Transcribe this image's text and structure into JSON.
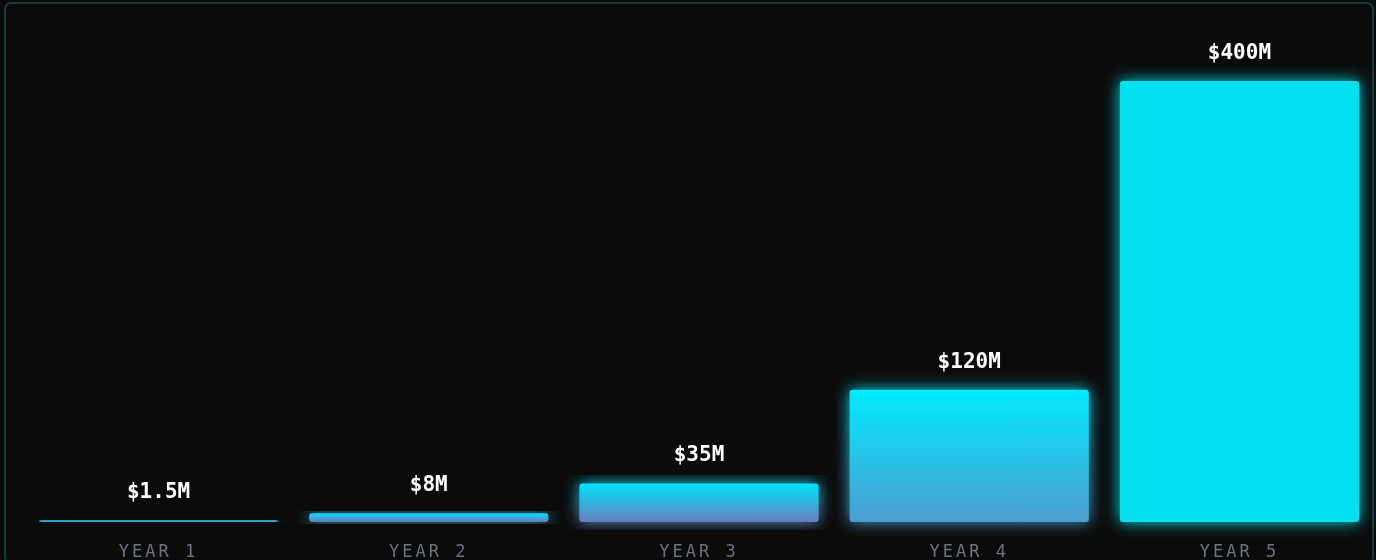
{
  "chart_data": {
    "type": "bar",
    "categories": [
      "YEAR 1",
      "YEAR 2",
      "YEAR 3",
      "YEAR 4",
      "YEAR 5"
    ],
    "values": [
      1.5,
      8,
      35,
      120,
      400
    ],
    "value_labels": [
      "$1.5M",
      "$8M",
      "$35M",
      "$120M",
      "$400M"
    ],
    "colors": [
      "#00e5ff",
      "#00e5ff",
      "#00e5ff",
      "#00eaff",
      "#00e0ee"
    ]
  }
}
